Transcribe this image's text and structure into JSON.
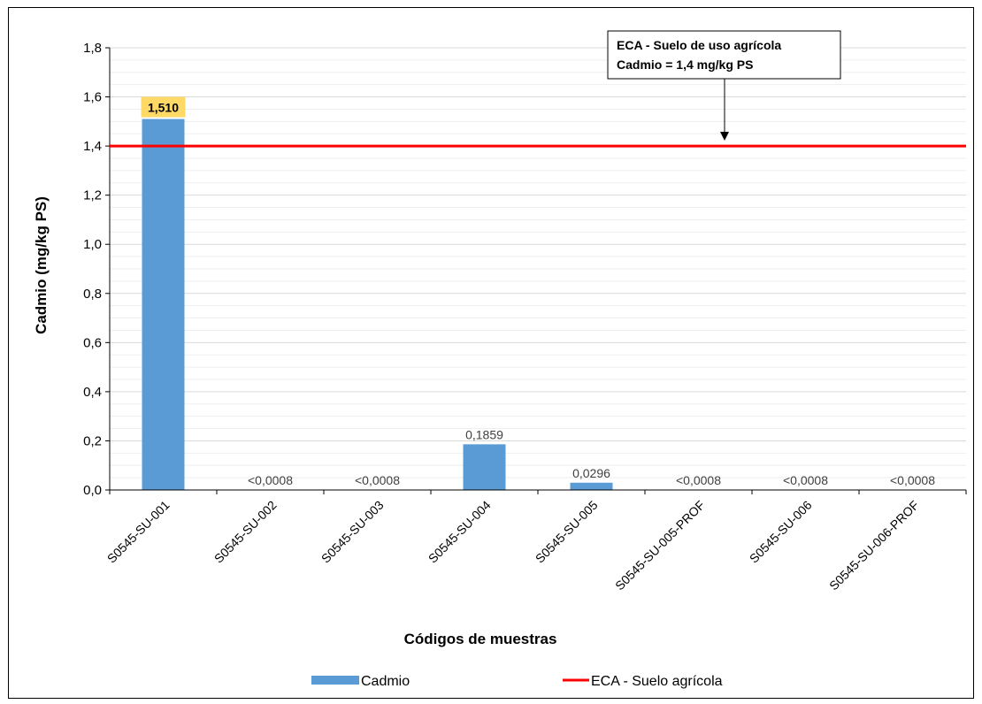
{
  "chart_data": {
    "type": "bar",
    "categories": [
      "S0545-SU-001",
      "S0545-SU-002",
      "S0545-SU-003",
      "S0545-SU-004",
      "S0545-SU-005",
      "S0545-SU-005-PROF",
      "S0545-SU-006",
      "S0545-SU-006-PROF"
    ],
    "series": [
      {
        "name": "Cadmio",
        "values": [
          1.51,
          0,
          0,
          0.1859,
          0.0296,
          0,
          0,
          0
        ],
        "labels": [
          "1,510",
          "<0,0008",
          "<0,0008",
          "0,1859",
          "0,0296",
          "<0,0008",
          "<0,0008",
          "<0,0008"
        ],
        "color": "#5b9bd5"
      }
    ],
    "reference_line": {
      "name": "ECA - Suelo agrícola",
      "value": 1.4,
      "color": "#ff0000"
    },
    "annotation": {
      "line1": "ECA - Suelo de uso agrícola",
      "line2": "Cadmio = 1,4 mg/kg PS"
    },
    "highlight_label_color": "#ffd966",
    "xlabel": "Códigos de muestras",
    "ylabel": "Cadmio (mg/kg PS)",
    "ylim": [
      0,
      1.8
    ],
    "yticks": [
      "0,0",
      "0,2",
      "0,4",
      "0,6",
      "0,8",
      "1,0",
      "1,2",
      "1,4",
      "1,6",
      "1,8"
    ],
    "grid": true,
    "legend_position": "bottom"
  }
}
